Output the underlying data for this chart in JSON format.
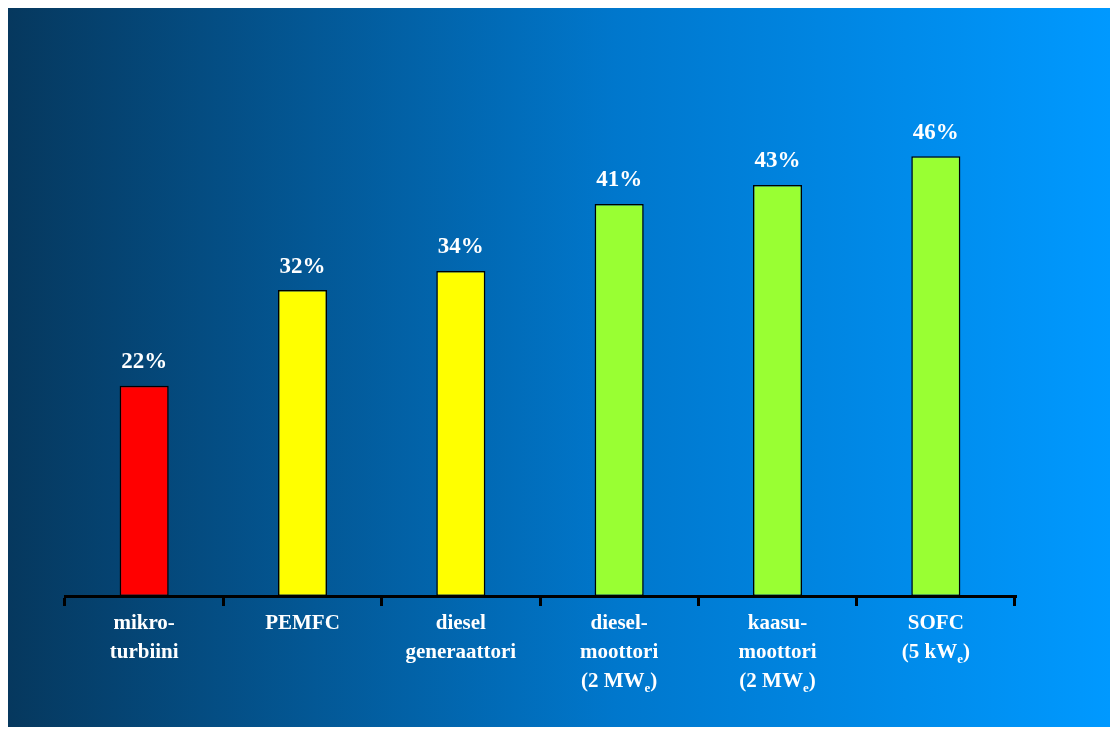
{
  "chart_data": {
    "type": "bar",
    "categories": [
      "mikro-\nturbiini",
      "PEMFC",
      "diesel\ngeneraattori",
      "diesel-\nmoottori\n(2 MW$_{e}$)",
      "kaasu-\nmoottori\n(2 MW$_{e}$)",
      "SOFC\n(5 kW$_{e}$)"
    ],
    "values": [
      22,
      32,
      34,
      41,
      43,
      46
    ],
    "colors": [
      "#ff0000",
      "#ffff00",
      "#ffff00",
      "#99ff33",
      "#99ff33",
      "#99ff33"
    ],
    "value_labels": [
      "22%",
      "32%",
      "34%",
      "41%",
      "43%",
      "46%"
    ],
    "tick_labels": "x",
    "grid": false,
    "legend": false
  }
}
